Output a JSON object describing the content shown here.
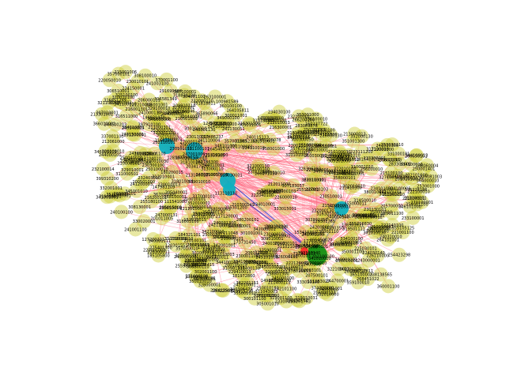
{
  "graph": {
    "colors": {
      "edge": "#ff6f86",
      "edge_strong": "#2233cc",
      "leaf": "#cccc33",
      "hub_primary": "#148f14",
      "hub_secondary": "#10b0c0",
      "hub_accent": "#ff2b2b"
    },
    "hubs": [
      {
        "kind": "hub_primary",
        "label": ""
      },
      {
        "kind": "hub_secondary",
        "label": ""
      },
      {
        "kind": "hub_secondary",
        "label": ""
      },
      {
        "kind": "hub_secondary",
        "label": ""
      },
      {
        "kind": "hub_secondary",
        "label": ""
      },
      {
        "kind": "hub_secondary",
        "label": ""
      },
      {
        "kind": "hub_accent",
        "label": ""
      }
    ],
    "leaf_labels": [
      "375228186",
      "299110058",
      "310852369",
      "203338856",
      "351852887",
      "326306293",
      "316851299",
      "311043003",
      "238138565",
      "354717811",
      "291699680",
      "374693735",
      "264546335",
      "100981589",
      "149915230",
      "737911377",
      "258701008",
      "312559196",
      "181972860",
      "255981030",
      "385156125",
      "378016853",
      "307183057",
      "233750069",
      "305015002",
      "361285512",
      "357631290",
      "283089878",
      "321139305",
      "166953153",
      "129301765",
      "318839230",
      "254423298",
      "313181945",
      "365890066",
      "385105078",
      "372311005",
      "155450020",
      "268451022",
      "319501111",
      "351818811",
      "262186300",
      "310981511",
      "222060346",
      "308156125",
      "355105125",
      "166296415",
      "147983109",
      "117486237",
      "149501007",
      "172187001",
      "181541020",
      "153410301",
      "111283027",
      "147863400",
      "109910114",
      "111541080",
      "168090063",
      "115100010",
      "125900001",
      "124171118",
      "127200221",
      "128107270",
      "152020015",
      "185105800",
      "113110110",
      "184321101",
      "164105811",
      "177310180",
      "140921070",
      "203417520",
      "225100101",
      "255261763",
      "173731450",
      "216044312",
      "206413811",
      "243301130",
      "236413500",
      "255180100",
      "266200100",
      "240115113",
      "180220001",
      "108060004",
      "213050118",
      "166071030",
      "211400113",
      "232403010",
      "180200015",
      "213440000",
      "200105010",
      "160237722",
      "213781433",
      "223111200",
      "230110600",
      "283300000",
      "120301551",
      "275401300",
      "300300050",
      "216200101",
      "205700001",
      "224030140",
      "253030110",
      "280300041",
      "271000130",
      "262000011",
      "300011001",
      "246001001",
      "241110004",
      "210300140",
      "230130101",
      "226300001",
      "250010001",
      "201011005",
      "232110101",
      "213301001",
      "215001006",
      "244700001",
      "216081003",
      "234150001",
      "206050103",
      "241001100",
      "219030001",
      "221210003",
      "232100014",
      "240140003",
      "206000111",
      "226100011",
      "276001010",
      "216300001",
      "250400130",
      "233300001",
      "240150001",
      "266000130",
      "250030111",
      "214030101",
      "241310001",
      "213000013",
      "210050101",
      "234500010",
      "212061000",
      "277051010",
      "280200101",
      "258801300",
      "261100001",
      "252003001",
      "247000131",
      "205040001",
      "264101001",
      "230650010",
      "252001003",
      "242005010",
      "203000101",
      "241130051",
      "211410300",
      "232100001",
      "230150000",
      "240500100",
      "222010030",
      "250040011",
      "202400001",
      "260050101",
      "231000101",
      "210501003",
      "241001100",
      "205300011",
      "226110000",
      "222040100",
      "245101000",
      "219010031",
      "240001300",
      "250050003",
      "244000010",
      "239006100",
      "206021003",
      "214010300",
      "221500101",
      "247000301",
      "232101000",
      "212400300",
      "206012000",
      "225030101",
      "241300050",
      "250001401",
      "232000130",
      "215100500",
      "240030010",
      "230510001",
      "216000103",
      "255100001",
      "208300100",
      "215301200",
      "234100000",
      "237711048",
      "216301300",
      "272911011",
      "229410013",
      "241003100",
      "201010300",
      "230001100",
      "244030001",
      "210000301",
      "227000103",
      "242101100",
      "208400130",
      "225300010",
      "250001013",
      "240310010",
      "233000101",
      "216020000",
      "210400011",
      "230705000",
      "222120001",
      "247000030",
      "221100001",
      "210000103",
      "250010101",
      "215011100",
      "226000010",
      "240030001",
      "210010001",
      "224110010",
      "200501000",
      "226010100",
      "231200001",
      "213104010",
      "270000101",
      "250030001",
      "241010300",
      "227001010",
      "232010000",
      "222140100",
      "243000001",
      "217120000",
      "202003101",
      "211200010",
      "256100010",
      "247001000",
      "230101010",
      "215000101",
      "241200003",
      "226000130",
      "212011000",
      "224101000",
      "253000100",
      "240000101",
      "210100030",
      "234010001",
      "202100100",
      "220050010",
      "216001301",
      "242110001",
      "215100100",
      "207500101",
      "241000130",
      "234101000",
      "230010101",
      "225001003",
      "240100100",
      "212010003",
      "204010030",
      "231101001",
      "230010013",
      "242000101",
      "230130010",
      "211000101",
      "222100010",
      "210010101",
      "253001000",
      "212000300",
      "250100010",
      "242010001",
      "221000103",
      "230300100",
      "207010001",
      "240010300",
      "251001000",
      "234030100",
      "214101000",
      "230001110",
      "245010001",
      "263100001",
      "210300001",
      "232010010",
      "220100101",
      "211000301",
      "245000100",
      "233100001",
      "230010300",
      "221001100",
      "244000101",
      "270100001",
      "210010030",
      "232001010",
      "230100001",
      "213100010",
      "247001003",
      "221000301",
      "232000110",
      "250100001",
      "210030001",
      "340306479",
      "324130350",
      "300440081",
      "303302250",
      "355210830",
      "385580781",
      "316581349",
      "324510301",
      "362311310",
      "311000501",
      "344500203",
      "311100101",
      "382201151",
      "340001111",
      "392103140",
      "325100100",
      "336501011",
      "313000110",
      "344100013",
      "370001100",
      "321510601",
      "303451000",
      "357001303",
      "322100011",
      "306510001",
      "368100001",
      "333015001",
      "308130001",
      "361000300",
      "324100010",
      "300510001",
      "355001010",
      "316002001",
      "349100010",
      "342000001",
      "316301001",
      "380010001",
      "374010100",
      "351001300",
      "326000101",
      "399310200",
      "343003010",
      "310101001",
      "321400001",
      "358000101",
      "330020001",
      "314500010",
      "305011001",
      "333010100",
      "387100001",
      "365100003",
      "340102000",
      "323000101",
      "380020001",
      "360000100",
      "306300110",
      "346000110",
      "341003000",
      "352000130",
      "316511000",
      "388100010",
      "309101000",
      "337000101",
      "318400010",
      "352010001",
      "323001100",
      "318010001",
      "331000101",
      "364000010",
      "380101000",
      "300101010",
      "349000100",
      "321000130",
      "345100001",
      "311010003",
      "306101000",
      "355000011",
      "341000300",
      "312100100",
      "367001000",
      "359100010",
      "322010100",
      "357000101",
      "313100101",
      "328000001",
      "318003100",
      "360100100",
      "320101000",
      "349010001",
      "301001010",
      "319100010",
      "344010001",
      "321101000",
      "330001100",
      "337100010",
      "342001001",
      "302010010",
      "348101000",
      "316001001",
      "360010100",
      "318100100",
      "342100010",
      "300101100",
      "366010001",
      "331100010",
      "304001100",
      "333020001",
      "328011000",
      "350100001",
      "307001010",
      "353001000",
      "321010100",
      "336010001",
      "319001100",
      "345001010",
      "302100100",
      "335010010",
      "309010001",
      "327100001",
      "349001001",
      "318001100",
      "341010010",
      "305100100",
      "319010001",
      "308100010",
      "333001001",
      "350010010",
      "326001100",
      "341100010",
      "304010001",
      "350001100",
      "361001000",
      "312010001",
      "334100100",
      "310001010",
      "339010010",
      "341001100",
      "318101000",
      "343100001",
      "307010100",
      "357010010",
      "320001100",
      "344100100",
      "329010001",
      "352100010",
      "309001001",
      "317100100",
      "346010001",
      "358001000",
      "310100101",
      "311021043",
      "350001010",
      "320010100",
      "301001001",
      "324100001",
      "313010010",
      "326010001",
      "337001100",
      "321100010",
      "305001010",
      "397910100",
      "332001001",
      "323100100",
      "317100010",
      "339001010",
      "301010010",
      "329100010",
      "346001001",
      "360001100",
      "304100010",
      "360101001",
      "302001100",
      "320100010",
      "361010001",
      "343010010",
      "303100100",
      "341001001",
      "354001100",
      "310010100",
      "336100010"
    ]
  }
}
